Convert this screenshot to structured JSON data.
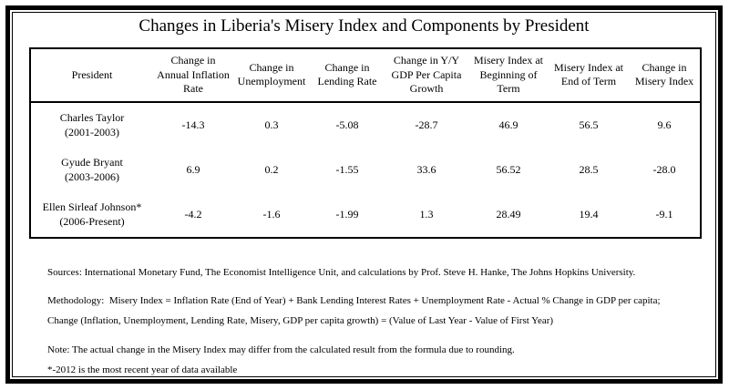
{
  "title": "Changes in Liberia's Misery Index and Components by President",
  "table": {
    "headers": [
      "President",
      "Change in Annual Inflation Rate",
      "Change in Unemployment",
      "Change in Lending Rate",
      "Change in Y/Y GDP Per Capita Growth",
      "Misery Index at Beginning of Term",
      "Misery Index at End of Term",
      "Change in Misery Index"
    ],
    "rows": [
      {
        "president": "Charles Taylor",
        "term": "(2001-2003)",
        "values": [
          "-14.3",
          "0.3",
          "-5.08",
          "-28.7",
          "46.9",
          "56.5",
          "9.6"
        ]
      },
      {
        "president": "Gyude Bryant",
        "term": "(2003-2006)",
        "values": [
          "6.9",
          "0.2",
          "-1.55",
          "33.6",
          "56.52",
          "28.5",
          "-28.0"
        ]
      },
      {
        "president": "Ellen Sirleaf Johnson*",
        "term": "(2006-Present)",
        "values": [
          "-4.2",
          "-1.6",
          "-1.99",
          "1.3",
          "28.49",
          "19.4",
          "-9.1"
        ]
      }
    ]
  },
  "notes": {
    "sources": "Sources: International Monetary Fund, The Economist Intelligence Unit, and calculations by Prof. Steve H. Hanke, The Johns Hopkins University.",
    "methodology_line1": "Methodology:  Misery Index = Inflation Rate (End of Year) + Bank Lending Interest Rates + Unemployment Rate - Actual % Change in GDP per capita;",
    "methodology_line2": "Change (Inflation, Unemployment, Lending Rate, Misery, GDP per capita growth) = (Value of Last Year - Value of First Year)",
    "note": "Note: The actual change in the Misery Index may differ from the calculated result from the formula due to rounding.",
    "asterisk": "*-2012 is the most recent year of data available"
  }
}
